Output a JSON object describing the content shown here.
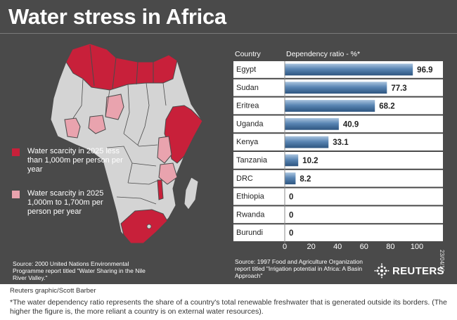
{
  "title": "Water stress in Africa",
  "colors": {
    "panel_bg": "#4a4a4a",
    "scarcity_high": "#c8203a",
    "scarcity_mid": "#e9a3ae",
    "land": "#d4d4d4",
    "bar": "#5a86b4"
  },
  "legend": {
    "high": "Water scarcity in 2025 less than 1,000m per person per year",
    "mid": "Water scarcity in 2025 1,000m to 1,700m per person per year"
  },
  "map_source": "Source: 2000 United Nations Environmental Programme report titled \"Water Sharing in the Nile River Valley.\"",
  "chart_source": "Source: 1997 Food and Agriculture Organization report titled \"Irrigation potential in Africa: A Basin Approach\"",
  "date_stamp": "23/04/10",
  "logo_text": "REUTERS",
  "credit": "Reuters graphic/Scott Barber",
  "footnote": "*The water dependency ratio represents the share of a country's total renewable freshwater that is generated outside its borders. (The higher the figure is, the more reliant a country is on external water resources).",
  "chart_data": {
    "type": "bar",
    "orientation": "horizontal",
    "column_headers": [
      "Country",
      "Dependency ratio - %*"
    ],
    "categories": [
      "Egypt",
      "Sudan",
      "Eritrea",
      "Uganda",
      "Kenya",
      "Tanzania",
      "DRC",
      "Ethiopia",
      "Rwanda",
      "Burundi"
    ],
    "values": [
      96.9,
      77.3,
      68.2,
      40.9,
      33.1,
      10.2,
      8.2,
      0,
      0,
      0
    ],
    "value_labels": [
      "96.9",
      "77.3",
      "68.2",
      "40.9",
      "33.1",
      "10.2",
      "8.2",
      "0",
      "0",
      "0"
    ],
    "xlim": [
      0,
      100
    ],
    "xticks": [
      0,
      20,
      40,
      60,
      80,
      100
    ],
    "grid": false
  }
}
